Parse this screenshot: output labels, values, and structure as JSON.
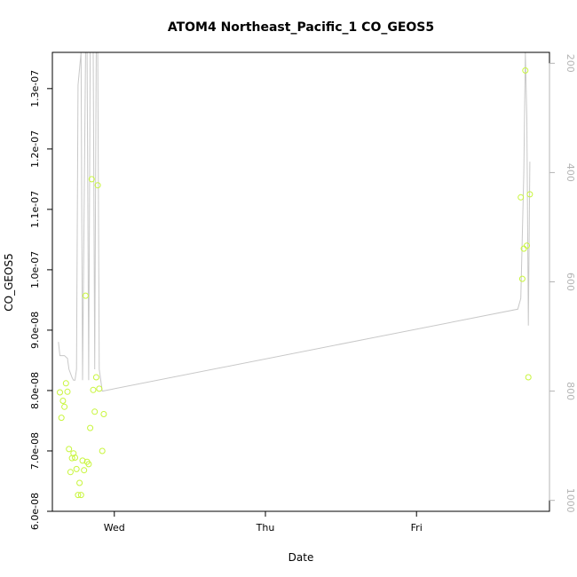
{
  "chart_data": {
    "type": "scatter",
    "title": "ATOM4 Northeast_Pacific_1 CO_GEOS5",
    "xlabel": "Date",
    "ylabel": "CO_GEOS5",
    "xlim": [
      -0.41,
      2.88
    ],
    "x_ticks": [
      {
        "value": 0,
        "label": "Wed"
      },
      {
        "value": 1,
        "label": "Thu"
      },
      {
        "value": 2,
        "label": "Fri"
      }
    ],
    "ylim": [
      6e-08,
      1.36e-07
    ],
    "y_ticks": [
      {
        "value": 6e-08,
        "label": "6.0e-08"
      },
      {
        "value": 7e-08,
        "label": "7.0e-08"
      },
      {
        "value": 8e-08,
        "label": "8.0e-08"
      },
      {
        "value": 9e-08,
        "label": "9.0e-08"
      },
      {
        "value": 1e-07,
        "label": "1.0e-07"
      },
      {
        "value": 1.1e-07,
        "label": "1.1e-07"
      },
      {
        "value": 1.2e-07,
        "label": "1.2e-07"
      },
      {
        "value": 1.3e-07,
        "label": "1.3e-07"
      }
    ],
    "y2lim_pressure": [
      1020,
      180
    ],
    "y2_ticks": [
      {
        "value": 200,
        "label": "200"
      },
      {
        "value": 400,
        "label": "400"
      },
      {
        "value": 600,
        "label": "600"
      },
      {
        "value": 800,
        "label": "800"
      },
      {
        "value": 1000,
        "label": "1000"
      }
    ],
    "point_color": "#c8f53c",
    "line_color": "#c8c8c8",
    "grid": false,
    "series": [
      {
        "values": [
          [
            -0.36,
            7.97e-08
          ],
          [
            -0.35,
            7.55e-08
          ],
          [
            -0.34,
            7.83e-08
          ],
          [
            -0.33,
            7.73e-08
          ],
          [
            -0.32,
            8.12e-08
          ],
          [
            -0.31,
            7.98e-08
          ],
          [
            -0.3,
            7.03e-08
          ],
          [
            -0.29,
            6.65e-08
          ],
          [
            -0.28,
            6.88e-08
          ],
          [
            -0.27,
            6.96e-08
          ],
          [
            -0.26,
            6.89e-08
          ],
          [
            -0.25,
            6.7e-08
          ],
          [
            -0.24,
            6.27e-08
          ],
          [
            -0.23,
            6.47e-08
          ],
          [
            -0.22,
            6.27e-08
          ],
          [
            -0.21,
            6.84e-08
          ],
          [
            -0.2,
            6.68e-08
          ],
          [
            -0.19,
            9.57e-08
          ],
          [
            -0.18,
            6.82e-08
          ],
          [
            -0.17,
            6.78e-08
          ],
          [
            -0.16,
            7.38e-08
          ],
          [
            -0.15,
            1.15e-07
          ],
          [
            -0.14,
            8.01e-08
          ],
          [
            -0.13,
            7.65e-08
          ],
          [
            -0.12,
            8.22e-08
          ],
          [
            -0.11,
            1.14e-07
          ],
          [
            -0.1,
            8.03e-08
          ],
          [
            -0.08,
            7e-08
          ],
          [
            -0.07,
            7.61e-08
          ],
          [
            2.69,
            1.12e-07
          ],
          [
            2.7,
            9.85e-08
          ],
          [
            2.71,
            1.035e-07
          ],
          [
            2.72,
            1.33e-07
          ],
          [
            2.73,
            1.04e-07
          ],
          [
            2.74,
            8.22e-08
          ],
          [
            2.75,
            1.125e-07
          ]
        ]
      },
      {
        "axis": "pressure",
        "values": [
          [
            -0.37,
            710
          ],
          [
            -0.36,
            735
          ],
          [
            -0.33,
            735
          ],
          [
            -0.31,
            740
          ],
          [
            -0.3,
            760
          ],
          [
            -0.28,
            775
          ],
          [
            -0.27,
            780
          ],
          [
            -0.26,
            780
          ],
          [
            -0.25,
            760
          ],
          [
            -0.24,
            240
          ],
          [
            -0.22,
            170
          ],
          [
            -0.21,
            780
          ],
          [
            -0.19,
            170
          ],
          [
            -0.18,
            170
          ],
          [
            -0.17,
            780
          ],
          [
            -0.16,
            170
          ],
          [
            -0.14,
            170
          ],
          [
            -0.13,
            760
          ],
          [
            -0.12,
            170
          ],
          [
            -0.11,
            170
          ],
          [
            -0.1,
            760
          ],
          [
            -0.08,
            800
          ],
          [
            2.67,
            650
          ],
          [
            2.69,
            630
          ],
          [
            2.71,
            400
          ],
          [
            2.72,
            170
          ],
          [
            2.73,
            300
          ],
          [
            2.74,
            680
          ],
          [
            2.75,
            380
          ]
        ]
      }
    ]
  }
}
